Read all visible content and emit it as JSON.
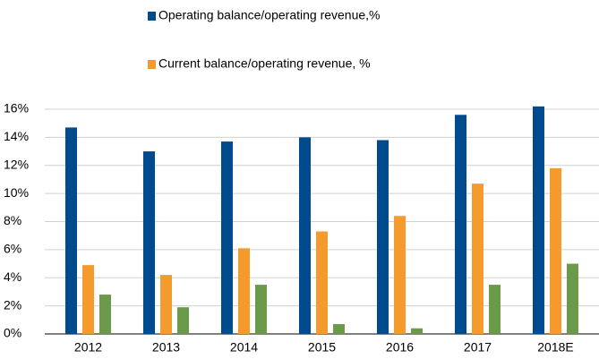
{
  "chart_data": {
    "type": "bar",
    "categories": [
      "2012",
      "2013",
      "2014",
      "2015",
      "2016",
      "2017",
      "2018E"
    ],
    "series": [
      {
        "name": "Operating balance/operating revenue,%",
        "color": "#004b8d",
        "values": [
          14.7,
          13.0,
          13.7,
          14.0,
          13.8,
          15.6,
          16.2
        ]
      },
      {
        "name": "Current balance/operating revenue, %",
        "color": "#f59a2c",
        "values": [
          4.9,
          4.2,
          6.1,
          7.3,
          8.4,
          10.7,
          11.8
        ]
      },
      {
        "color": "#6a9a4a",
        "values": [
          2.8,
          1.9,
          3.5,
          0.7,
          0.4,
          3.5,
          5.0
        ]
      }
    ],
    "ylim": [
      0,
      16
    ],
    "yticks": [
      {
        "value": 0,
        "label": "0%"
      },
      {
        "value": 2,
        "label": "2%"
      },
      {
        "value": 4,
        "label": "4%"
      },
      {
        "value": 6,
        "label": "6%"
      },
      {
        "value": 8,
        "label": "8%"
      },
      {
        "value": 10,
        "label": "10%"
      },
      {
        "value": 12,
        "label": "12%"
      },
      {
        "value": 14,
        "label": "14%"
      },
      {
        "value": 16,
        "label": "16%"
      }
    ],
    "grid": true
  }
}
